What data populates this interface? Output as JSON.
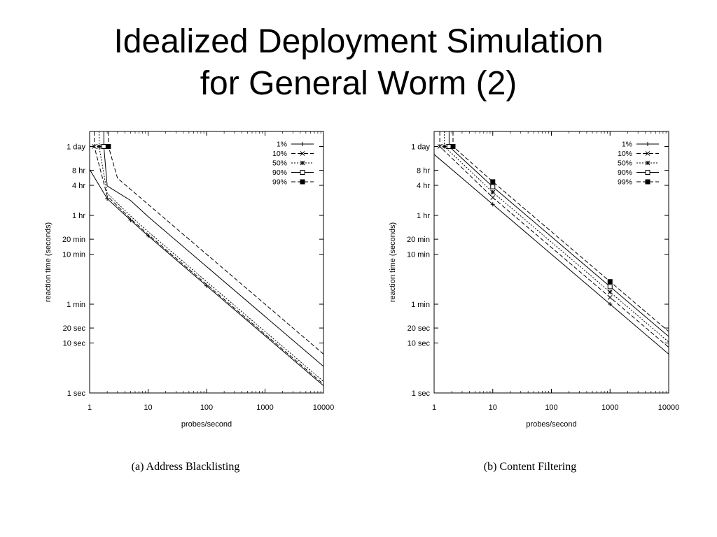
{
  "slide": {
    "title_line1": "Idealized Deployment Simulation",
    "title_line2": "for General Worm (2)"
  },
  "chart_data": [
    {
      "type": "line",
      "caption": "(a) Address Blacklisting",
      "xlabel": "probes/second",
      "ylabel": "reaction time (seconds)",
      "xscale": "log",
      "yscale": "log",
      "xlim": [
        1,
        10000
      ],
      "ylim": [
        1,
        172800
      ],
      "xticks": [
        {
          "value": 1,
          "label": "1"
        },
        {
          "value": 10,
          "label": "10"
        },
        {
          "value": 100,
          "label": "100"
        },
        {
          "value": 1000,
          "label": "1000"
        },
        {
          "value": 10000,
          "label": "10000"
        }
      ],
      "yticks": [
        {
          "value": 1,
          "label": "1 sec"
        },
        {
          "value": 10,
          "label": "10 sec"
        },
        {
          "value": 20,
          "label": "20 sec"
        },
        {
          "value": 60,
          "label": "1 min"
        },
        {
          "value": 600,
          "label": "10 min"
        },
        {
          "value": 1200,
          "label": "20 min"
        },
        {
          "value": 3600,
          "label": "1 hr"
        },
        {
          "value": 14400,
          "label": "4 hr"
        },
        {
          "value": 28800,
          "label": "8 hr"
        },
        {
          "value": 86400,
          "label": "1 day"
        }
      ],
      "legend_position": "top-right",
      "series": [
        {
          "name": "1%",
          "marker": "plus",
          "dash": "solid",
          "x": [
            1,
            2,
            5,
            10,
            100,
            10000
          ],
          "y": [
            30000,
            7800,
            2900,
            1400,
            140,
            1.4
          ]
        },
        {
          "name": "10%",
          "marker": "x",
          "dash": "dashed",
          "vertical_at": 1.2,
          "plotted_points": [
            [
              1.2,
              86400
            ]
          ],
          "x": [
            1.2,
            2,
            5,
            10,
            100,
            10000
          ],
          "y": [
            86400,
            8800,
            3100,
            1500,
            150,
            1.5
          ]
        },
        {
          "name": "50%",
          "marker": "star",
          "dash": "dotted",
          "vertical_at": 1.45,
          "plotted_points": [
            [
              1.45,
              86400
            ]
          ],
          "x": [
            1.45,
            2,
            5,
            10,
            100,
            10000
          ],
          "y": [
            86400,
            10000,
            3500,
            1700,
            170,
            1.7
          ]
        },
        {
          "name": "90%",
          "marker": "square-open",
          "dash": "solid",
          "vertical_at": 1.75,
          "plotted_points": [
            [
              1.75,
              86400
            ]
          ],
          "x": [
            1.75,
            2,
            5,
            10,
            100,
            10000
          ],
          "y": [
            86400,
            14000,
            7200,
            3400,
            340,
            3.4
          ]
        },
        {
          "name": "99%",
          "marker": "square-filled",
          "dash": "dashed",
          "vertical_at": 2.1,
          "plotted_points": [
            [
              2.1,
              86400
            ]
          ],
          "x": [
            2.1,
            3,
            5,
            10,
            100,
            10000
          ],
          "y": [
            86400,
            20000,
            12000,
            6000,
            600,
            6
          ]
        }
      ]
    },
    {
      "type": "line",
      "caption": "(b) Content Filtering",
      "xlabel": "probes/second",
      "ylabel": "reaction time (seconds)",
      "xscale": "log",
      "yscale": "log",
      "xlim": [
        1,
        10000
      ],
      "ylim": [
        1,
        172800
      ],
      "xticks": [
        {
          "value": 1,
          "label": "1"
        },
        {
          "value": 10,
          "label": "10"
        },
        {
          "value": 100,
          "label": "100"
        },
        {
          "value": 1000,
          "label": "1000"
        },
        {
          "value": 10000,
          "label": "10000"
        }
      ],
      "yticks": [
        {
          "value": 1,
          "label": "1 sec"
        },
        {
          "value": 10,
          "label": "10 sec"
        },
        {
          "value": 20,
          "label": "20 sec"
        },
        {
          "value": 60,
          "label": "1 min"
        },
        {
          "value": 600,
          "label": "10 min"
        },
        {
          "value": 1200,
          "label": "20 min"
        },
        {
          "value": 3600,
          "label": "1 hr"
        },
        {
          "value": 14400,
          "label": "4 hr"
        },
        {
          "value": 28800,
          "label": "8 hr"
        },
        {
          "value": 86400,
          "label": "1 day"
        }
      ],
      "legend_position": "top-right",
      "series": [
        {
          "name": "1%",
          "marker": "plus",
          "dash": "solid",
          "plotted_points": [
            [
              10,
              6000
            ],
            [
              1000,
              60
            ]
          ],
          "x": [
            1,
            10,
            100,
            1000,
            10000
          ],
          "y": [
            60000,
            6000,
            600,
            60,
            6
          ]
        },
        {
          "name": "10%",
          "marker": "x",
          "dash": "dashed",
          "vertical_at": 1.25,
          "plotted_points": [
            [
              1.25,
              86400
            ],
            [
              10,
              8200
            ],
            [
              1000,
              82
            ]
          ],
          "x": [
            1.25,
            10,
            100,
            1000,
            10000
          ],
          "y": [
            86400,
            8200,
            820,
            82,
            8.2
          ]
        },
        {
          "name": "50%",
          "marker": "star",
          "dash": "dotted",
          "vertical_at": 1.5,
          "plotted_points": [
            [
              1.5,
              86400
            ],
            [
              10,
              10500
            ],
            [
              1000,
              105
            ]
          ],
          "x": [
            1.5,
            10,
            100,
            1000,
            10000
          ],
          "y": [
            86400,
            10500,
            1050,
            105,
            10.5
          ]
        },
        {
          "name": "90%",
          "marker": "square-open",
          "dash": "solid",
          "vertical_at": 1.8,
          "plotted_points": [
            [
              1.8,
              86400
            ],
            [
              10,
              13500
            ],
            [
              1000,
              135
            ]
          ],
          "x": [
            1.8,
            10,
            100,
            1000,
            10000
          ],
          "y": [
            86400,
            13500,
            1350,
            135,
            13.5
          ]
        },
        {
          "name": "99%",
          "marker": "square-filled",
          "dash": "dashed",
          "vertical_at": 2.1,
          "plotted_points": [
            [
              2.1,
              86400
            ],
            [
              10,
              17000
            ],
            [
              1000,
              170
            ]
          ],
          "x": [
            2.1,
            10,
            100,
            1000,
            10000
          ],
          "y": [
            86400,
            17000,
            1700,
            170,
            17
          ]
        }
      ]
    }
  ]
}
